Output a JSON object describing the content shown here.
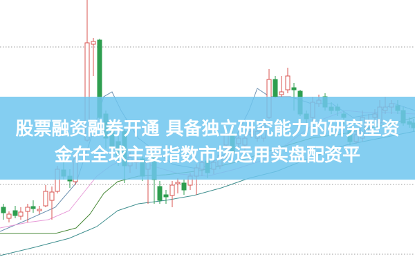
{
  "headline": {
    "line1": "股票融资融券开通 具备独立研究能力的研究型资",
    "line2": "金在全球主要指数市场运用实盘配资平"
  },
  "colors": {
    "up_candle": "#d9534f",
    "down_candle": "#2e9e4f",
    "banner": "#6ec6ee",
    "headline_text": "#ffffff",
    "gridline": "#999999"
  },
  "chart": {
    "type": "candlestick",
    "moving_average_lines": 4,
    "grid": "horizontal dotted"
  }
}
